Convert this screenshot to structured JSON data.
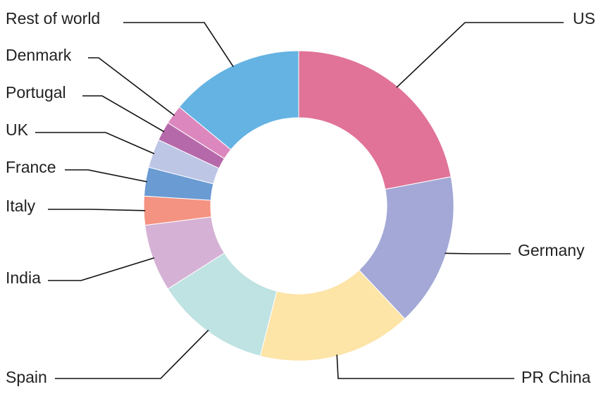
{
  "chart_data": {
    "type": "donut",
    "categories": [
      "US",
      "Germany",
      "PR China",
      "Spain",
      "India",
      "Italy",
      "France",
      "UK",
      "Portugal",
      "Denmark",
      "Rest of world"
    ],
    "values": [
      22,
      16,
      16,
      12,
      7,
      3,
      3,
      3,
      2,
      2,
      14
    ],
    "colors": [
      "#e07397",
      "#a3a8d6",
      "#fde4a7",
      "#bfe2e2",
      "#d5b2d5",
      "#f49382",
      "#6a9bd3",
      "#bec6e6",
      "#b669aa",
      "#dc88be",
      "#65b3e3"
    ]
  }
}
